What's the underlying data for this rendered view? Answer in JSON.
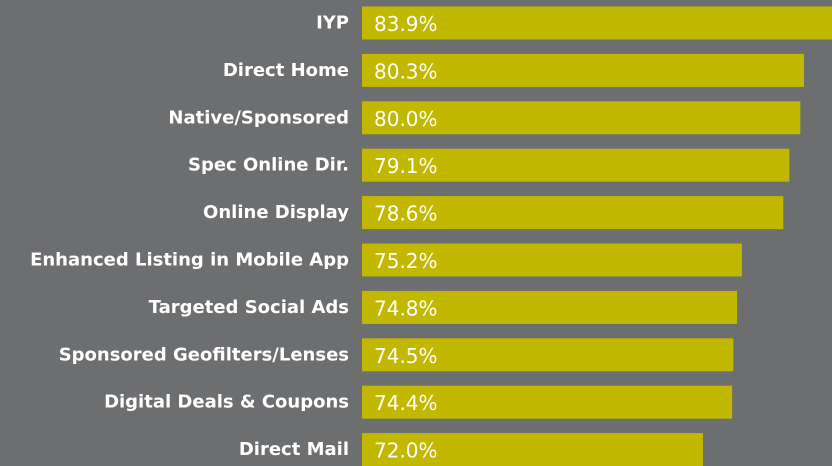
{
  "chart_data": {
    "type": "bar",
    "orientation": "horizontal",
    "categories": [
      "IYP",
      "Direct Home",
      "Native/Sponsored",
      "Spec Online Dir.",
      "Online Display",
      "Enhanced Listing in Mobile App",
      "Targeted Social Ads",
      "Sponsored Geofilters/Lenses",
      "Digital Deals & Coupons",
      "Direct Mail"
    ],
    "values": [
      83.9,
      80.3,
      80.0,
      79.1,
      78.6,
      75.2,
      74.8,
      74.5,
      74.4,
      72.0
    ],
    "value_labels": [
      "83.9%",
      "80.3%",
      "80.0%",
      "79.1%",
      "78.6%",
      "75.2%",
      "74.8%",
      "74.5%",
      "74.4%",
      "72.0%"
    ],
    "color": "#c2b800",
    "xlim": [
      44,
      82.6
    ]
  }
}
